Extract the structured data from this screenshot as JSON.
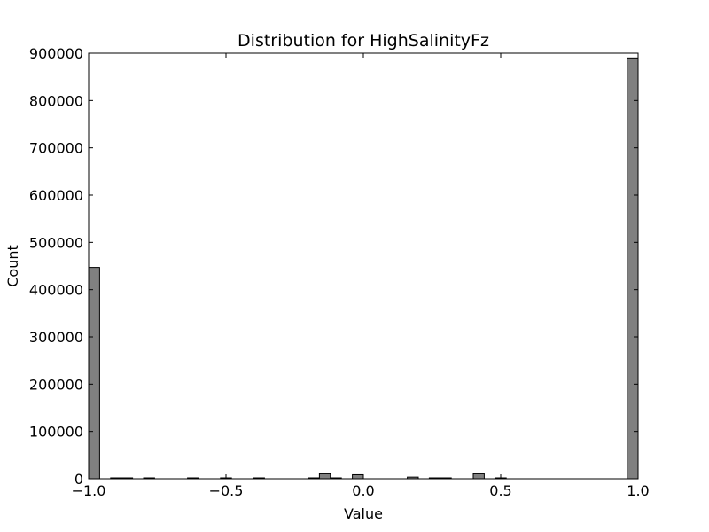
{
  "chart_data": {
    "type": "bar",
    "title": "Distribution for HighSalinityFz",
    "xlabel": "Value",
    "ylabel": "Count",
    "xlim": [
      -1.0,
      1.0
    ],
    "ylim": [
      0,
      900000
    ],
    "x_ticks": [
      -1.0,
      -0.5,
      0.0,
      0.5,
      1.0
    ],
    "x_tick_labels": [
      "−1.0",
      "−0.5",
      "0.0",
      "0.5",
      "1.0"
    ],
    "y_ticks": [
      0,
      100000,
      200000,
      300000,
      400000,
      500000,
      600000,
      700000,
      800000,
      900000
    ],
    "y_tick_labels": [
      "0",
      "100000",
      "200000",
      "300000",
      "400000",
      "500000",
      "600000",
      "700000",
      "800000",
      "900000"
    ],
    "bin_width": 0.04,
    "bars": [
      {
        "x0": -1.0,
        "count": 447000
      },
      {
        "x0": -0.92,
        "count": 1500
      },
      {
        "x0": -0.88,
        "count": 1500
      },
      {
        "x0": -0.8,
        "count": 1000
      },
      {
        "x0": -0.64,
        "count": 1000
      },
      {
        "x0": -0.52,
        "count": 1000
      },
      {
        "x0": -0.4,
        "count": 1000
      },
      {
        "x0": -0.2,
        "count": 1000
      },
      {
        "x0": -0.16,
        "count": 10500
      },
      {
        "x0": -0.12,
        "count": 1500
      },
      {
        "x0": -0.04,
        "count": 8500
      },
      {
        "x0": 0.16,
        "count": 3500
      },
      {
        "x0": 0.24,
        "count": 1500
      },
      {
        "x0": 0.28,
        "count": 1500
      },
      {
        "x0": 0.4,
        "count": 10500
      },
      {
        "x0": 0.48,
        "count": 1000
      },
      {
        "x0": 0.96,
        "count": 890000
      }
    ],
    "bar_color": "#808080",
    "edge_color": "#000000",
    "grid": false
  }
}
